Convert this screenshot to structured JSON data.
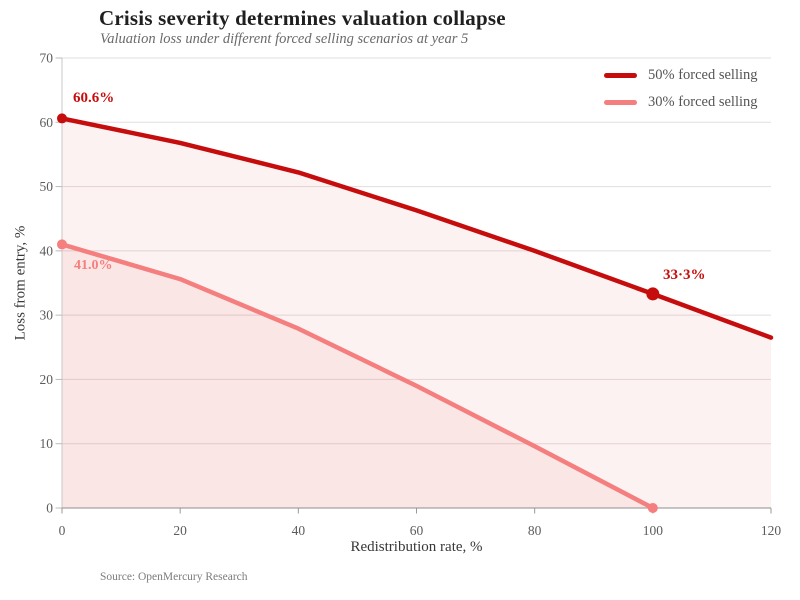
{
  "header": {
    "title": "Crisis severity determines valuation collapse",
    "subtitle": "Valuation loss under different forced selling scenarios at year 5"
  },
  "chart_data": {
    "type": "line",
    "title": "Crisis severity determines valuation collapse",
    "subtitle": "Valuation loss under different forced selling scenarios at year 5",
    "xlabel": "Redistribution rate, %",
    "ylabel": "Loss from entry, %",
    "xlim": [
      0,
      120
    ],
    "ylim": [
      0,
      70
    ],
    "x_ticks": [
      0,
      20,
      40,
      60,
      80,
      100,
      120
    ],
    "y_ticks": [
      0,
      10,
      20,
      30,
      40,
      50,
      60,
      70
    ],
    "grid": "horizontal",
    "legend_position": "top-right",
    "series": [
      {
        "name": "50% forced selling",
        "color": "#c60d0d",
        "x": [
          0,
          20,
          40,
          60,
          80,
          100,
          120
        ],
        "values": [
          60.6,
          56.8,
          52.2,
          46.3,
          40.0,
          33.3,
          26.5
        ],
        "area": true,
        "markers": [
          {
            "x": 0,
            "y": 60.6,
            "r": 5
          },
          {
            "x": 100,
            "y": 33.3,
            "r": 6.5
          }
        ]
      },
      {
        "name": "30% forced selling",
        "color": "#f57e7e",
        "x": [
          0,
          20,
          40,
          60,
          80,
          100
        ],
        "values": [
          41.0,
          35.6,
          27.9,
          19.0,
          9.6,
          0.0
        ],
        "area": true,
        "markers": [
          {
            "x": 0,
            "y": 41.0,
            "r": 5
          },
          {
            "x": 100,
            "y": 0.0,
            "r": 5
          }
        ]
      }
    ],
    "annotations": [
      {
        "text": "60.6%",
        "series_index": 0,
        "at_x": 0
      },
      {
        "text": "41.0%",
        "series_index": 1,
        "at_x": 0
      },
      {
        "text": "33·3%",
        "series_index": 0,
        "at_x": 100
      }
    ]
  },
  "axes": {
    "x_tick_labels": [
      "0",
      "20",
      "40",
      "60",
      "80",
      "100",
      "120"
    ],
    "y_tick_labels": [
      "0",
      "10",
      "20",
      "30",
      "40",
      "50",
      "60",
      "70"
    ],
    "x_title": "Redistribution rate, %",
    "y_title": "Loss from entry, %"
  },
  "legend": {
    "items": [
      {
        "label": "50% forced selling",
        "color": "#c60d0d"
      },
      {
        "label": "30% forced selling",
        "color": "#f57e7e"
      }
    ]
  },
  "labels": {
    "start_50": "60.6%",
    "start_30": "41.0%",
    "mid_50": "33·3%"
  },
  "source": {
    "text": "Source: OpenMercury Research"
  },
  "colors": {
    "line_50": "#c60d0d",
    "line_30": "#f57e7e",
    "area_fill": "rgba(226,88,88,0.08)",
    "gridline": "#e3dddd",
    "left_axis": "#c8c8c8",
    "bottom_axis": "#a3a3a3",
    "tick_label": "#5c5c5c",
    "title_text": "#1f1f1f",
    "subtitle_text": "#6a6a6a"
  }
}
